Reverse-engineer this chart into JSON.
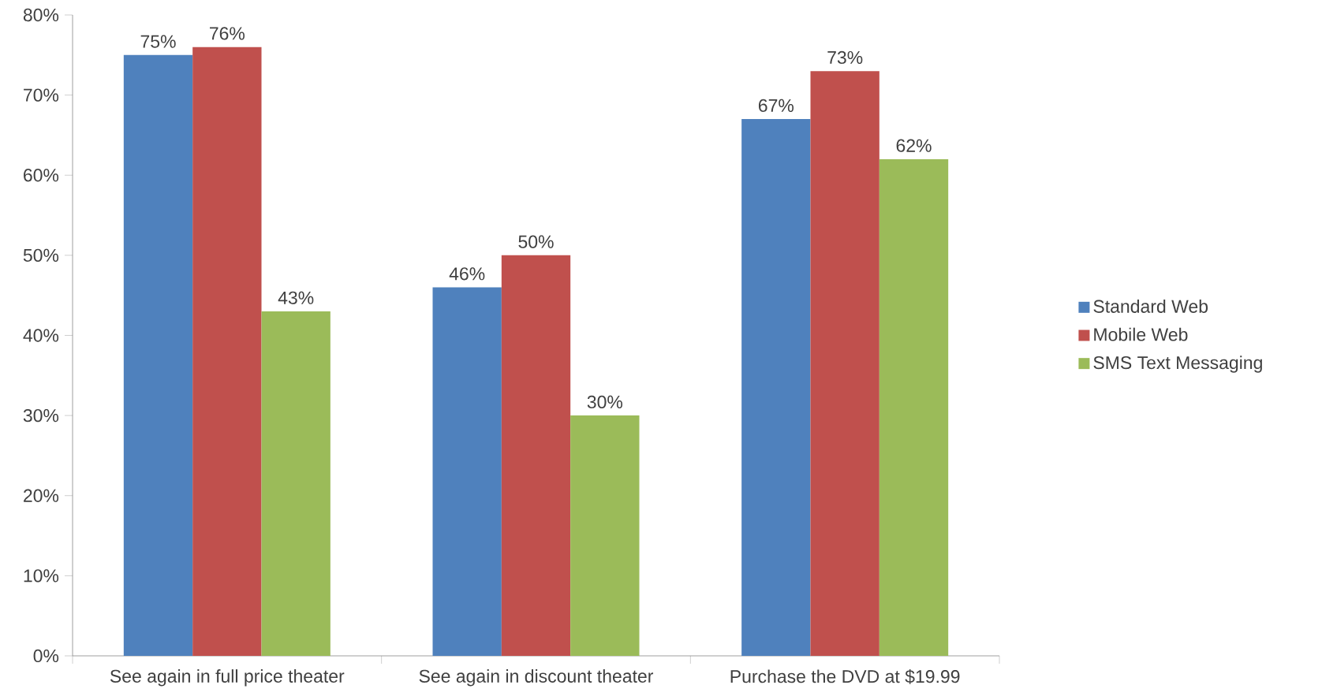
{
  "chart_data": {
    "type": "bar",
    "categories": [
      "See again in full price theater",
      "See again in discount theater",
      "Purchase the DVD at $19.99"
    ],
    "series": [
      {
        "name": "Standard Web",
        "color": "#4f81bd",
        "values": [
          75,
          46,
          67
        ],
        "value_labels": [
          "75%",
          "46%",
          "67%"
        ]
      },
      {
        "name": "Mobile Web",
        "color": "#c0504d",
        "values": [
          76,
          50,
          73
        ],
        "value_labels": [
          "76%",
          "50%",
          "73%"
        ]
      },
      {
        "name": "SMS Text Messaging",
        "color": "#9bbb59",
        "values": [
          43,
          30,
          62
        ],
        "value_labels": [
          "43%",
          "30%",
          "62%"
        ]
      }
    ],
    "ylim": [
      0,
      80
    ],
    "yticks": [
      {
        "value": 0,
        "label": "0%"
      },
      {
        "value": 10,
        "label": "10%"
      },
      {
        "value": 20,
        "label": "20%"
      },
      {
        "value": 30,
        "label": "30%"
      },
      {
        "value": 40,
        "label": "40%"
      },
      {
        "value": 50,
        "label": "50%"
      },
      {
        "value": 60,
        "label": "60%"
      },
      {
        "value": 70,
        "label": "70%"
      },
      {
        "value": 80,
        "label": "80%"
      }
    ],
    "grid": false,
    "legend": "right"
  }
}
